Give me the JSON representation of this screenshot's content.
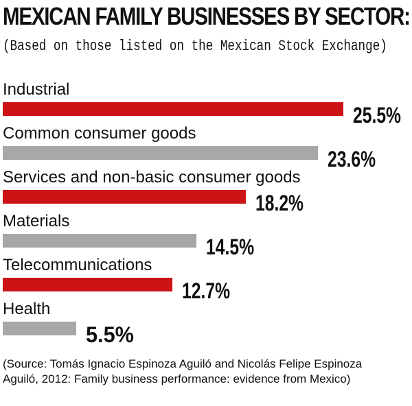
{
  "header": {
    "title": "MEXICAN FAMILY BUSINESSES BY SECTOR:",
    "subtitle": "(Based on those listed on the Mexican Stock Exchange)"
  },
  "colors": {
    "red": "#cc1416",
    "gray": "#a7a7a7"
  },
  "chart_data": {
    "type": "bar",
    "orientation": "horizontal",
    "categories": [
      "Industrial",
      "Common consumer goods",
      "Services and non-basic consumer goods",
      "Materials",
      "Telecommunications",
      "Health"
    ],
    "values": [
      25.5,
      23.6,
      18.2,
      14.5,
      12.7,
      5.5
    ],
    "value_labels": [
      "25.5%",
      "23.6%",
      "18.2%",
      "14.5%",
      "12.7%",
      "5.5%"
    ],
    "bar_colors": [
      "red",
      "gray",
      "red",
      "gray",
      "red",
      "gray"
    ],
    "title": "MEXICAN FAMILY BUSINESSES BY SECTOR:",
    "xlim": [
      0,
      25.5
    ],
    "grid": false,
    "legend": "none"
  },
  "footer": {
    "source": "(Source: Tomás Ignacio Espinoza Aguiló and Nicolás Felipe Espinoza Aguiló, 2012: Family business performance: evidence from Mexico)"
  }
}
